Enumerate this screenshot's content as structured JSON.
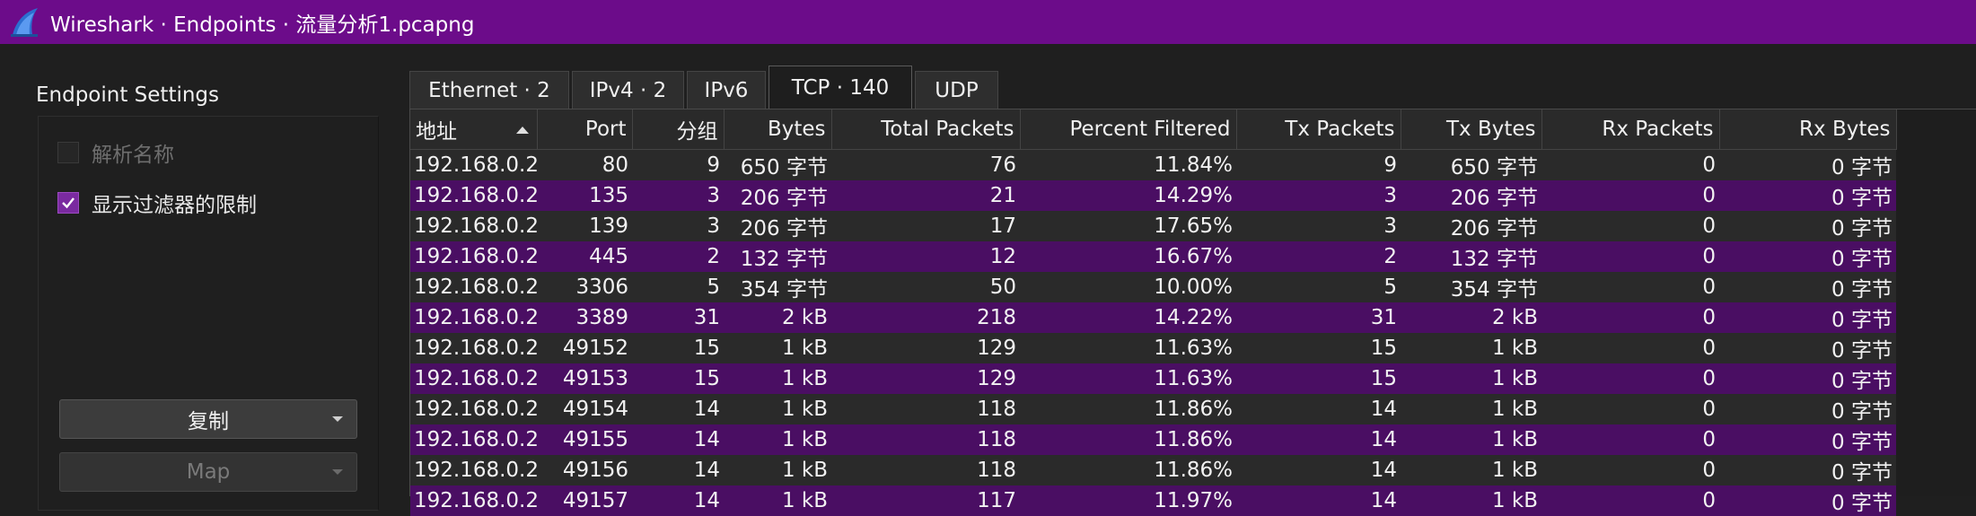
{
  "window": {
    "title": "Wireshark · Endpoints · 流量分析1.pcapng"
  },
  "colors": {
    "titlebar": "#6c0c8a",
    "row_alt": "#4a0e63",
    "row_base": "#2a2a2a"
  },
  "left_panel": {
    "settings_label": "Endpoint Settings",
    "resolve_names": {
      "label": "解析名称",
      "checked": false,
      "enabled": false
    },
    "limit_filter": {
      "label": "显示过滤器的限制",
      "checked": true,
      "enabled": true
    },
    "copy_button": "复制",
    "map_button": "Map"
  },
  "tabs": [
    {
      "label": "Ethernet · 2",
      "active": false
    },
    {
      "label": "IPv4 · 2",
      "active": false
    },
    {
      "label": "IPv6",
      "active": false
    },
    {
      "label": "TCP · 140",
      "active": true
    },
    {
      "label": "UDP",
      "active": false
    }
  ],
  "table": {
    "columns": [
      "地址",
      "Port",
      "分组",
      "Bytes",
      "Total Packets",
      "Percent Filtered",
      "Tx Packets",
      "Tx Bytes",
      "Rx Packets",
      "Rx Bytes"
    ],
    "sorted_column": "地址",
    "rows": [
      [
        "192.168.0.2",
        "80",
        "9",
        "650 字节",
        "76",
        "11.84%",
        "9",
        "650 字节",
        "0",
        "0 字节"
      ],
      [
        "192.168.0.2",
        "135",
        "3",
        "206 字节",
        "21",
        "14.29%",
        "3",
        "206 字节",
        "0",
        "0 字节"
      ],
      [
        "192.168.0.2",
        "139",
        "3",
        "206 字节",
        "17",
        "17.65%",
        "3",
        "206 字节",
        "0",
        "0 字节"
      ],
      [
        "192.168.0.2",
        "445",
        "2",
        "132 字节",
        "12",
        "16.67%",
        "2",
        "132 字节",
        "0",
        "0 字节"
      ],
      [
        "192.168.0.2",
        "3306",
        "5",
        "354 字节",
        "50",
        "10.00%",
        "5",
        "354 字节",
        "0",
        "0 字节"
      ],
      [
        "192.168.0.2",
        "3389",
        "31",
        "2 kB",
        "218",
        "14.22%",
        "31",
        "2 kB",
        "0",
        "0 字节"
      ],
      [
        "192.168.0.2",
        "49152",
        "15",
        "1 kB",
        "129",
        "11.63%",
        "15",
        "1 kB",
        "0",
        "0 字节"
      ],
      [
        "192.168.0.2",
        "49153",
        "15",
        "1 kB",
        "129",
        "11.63%",
        "15",
        "1 kB",
        "0",
        "0 字节"
      ],
      [
        "192.168.0.2",
        "49154",
        "14",
        "1 kB",
        "118",
        "11.86%",
        "14",
        "1 kB",
        "0",
        "0 字节"
      ],
      [
        "192.168.0.2",
        "49155",
        "14",
        "1 kB",
        "118",
        "11.86%",
        "14",
        "1 kB",
        "0",
        "0 字节"
      ],
      [
        "192.168.0.2",
        "49156",
        "14",
        "1 kB",
        "118",
        "11.86%",
        "14",
        "1 kB",
        "0",
        "0 字节"
      ],
      [
        "192.168.0.2",
        "49157",
        "14",
        "1 kB",
        "117",
        "11.97%",
        "14",
        "1 kB",
        "0",
        "0 字节"
      ]
    ]
  }
}
